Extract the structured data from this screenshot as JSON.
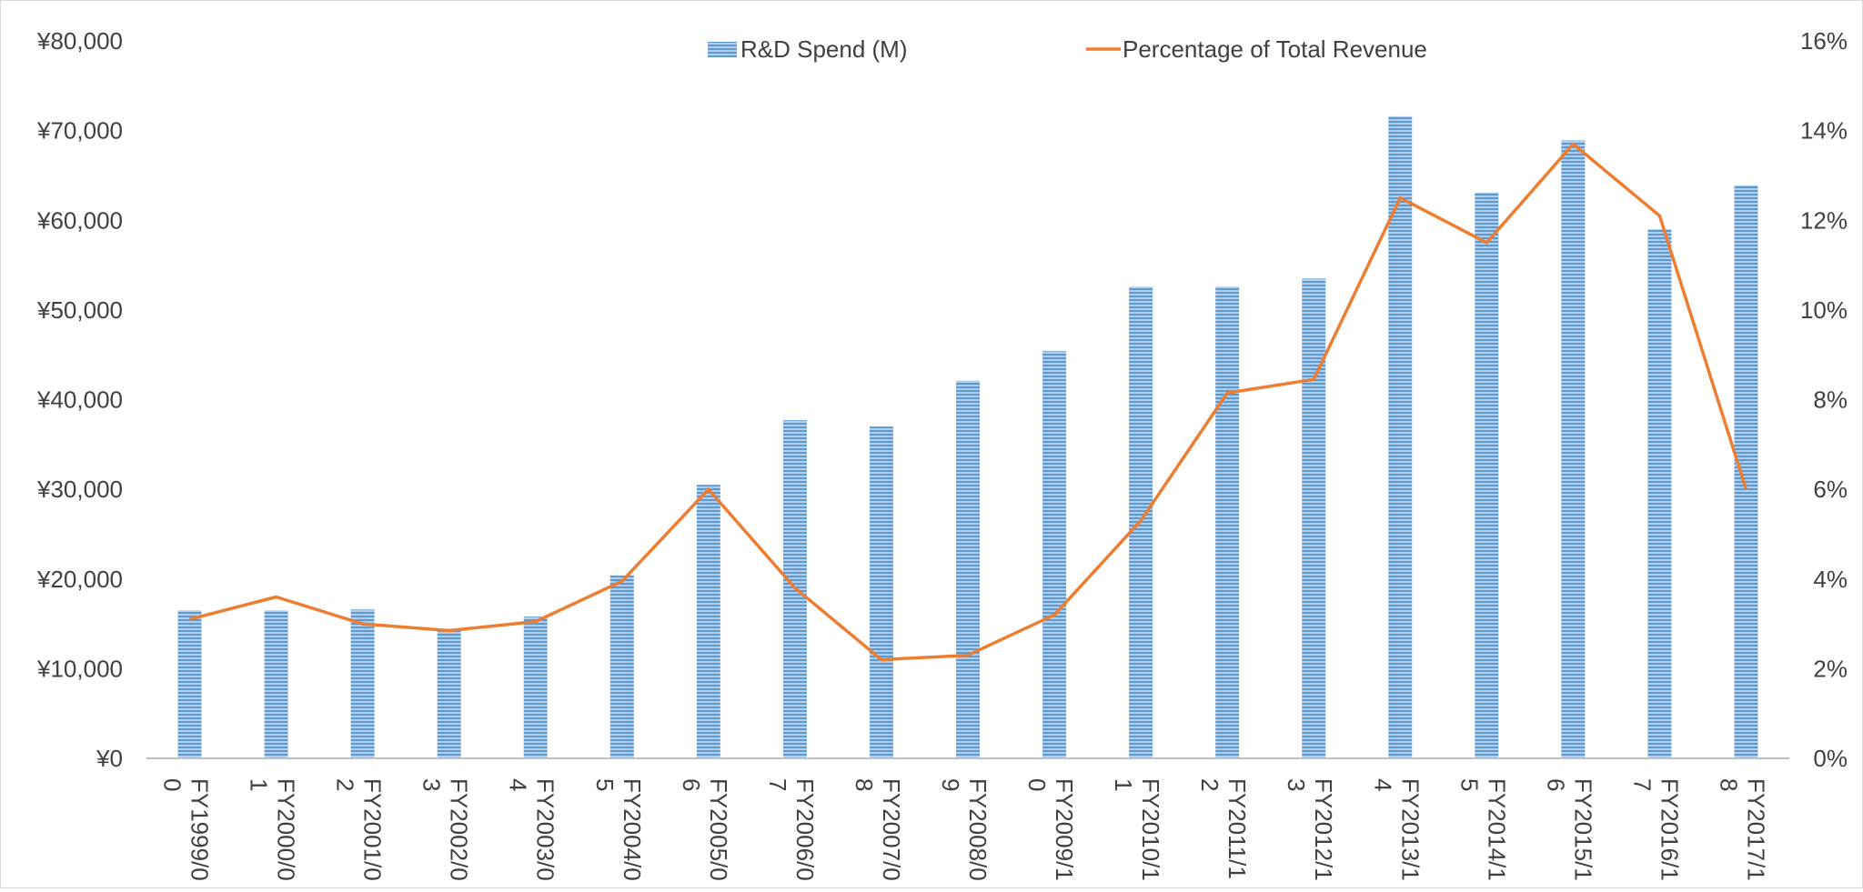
{
  "chart_data": {
    "type": "bar+line",
    "title": "",
    "xlabel": "",
    "ylabel": "",
    "categories": [
      [
        "FY1999/0",
        "0"
      ],
      [
        "FY2000/0",
        "1"
      ],
      [
        "FY2001/0",
        "2"
      ],
      [
        "FY2002/0",
        "3"
      ],
      [
        "FY2003/0",
        "4"
      ],
      [
        "FY2004/0",
        "5"
      ],
      [
        "FY2005/0",
        "6"
      ],
      [
        "FY2006/0",
        "7"
      ],
      [
        "FY2007/0",
        "8"
      ],
      [
        "FY2008/0",
        "9"
      ],
      [
        "FY2009/1",
        "0"
      ],
      [
        "FY2010/1",
        "1"
      ],
      [
        "FY2011/1",
        "2"
      ],
      [
        "FY2012/1",
        "3"
      ],
      [
        "FY2013/1",
        "4"
      ],
      [
        "FY2014/1",
        "5"
      ],
      [
        "FY2015/1",
        "6"
      ],
      [
        "FY2016/1",
        "7"
      ],
      [
        "FY2017/1",
        "8"
      ]
    ],
    "series": [
      {
        "name": "R&D Spend (M)",
        "kind": "bar",
        "axis": "left",
        "color": "#5b9bd5",
        "values": [
          16500,
          16500,
          16600,
          14300,
          15800,
          20400,
          30500,
          37700,
          37000,
          42100,
          45400,
          52600,
          52600,
          53500,
          71600,
          63100,
          68900,
          59000,
          63900
        ]
      },
      {
        "name": "Percentage of Total Revenue",
        "kind": "line",
        "axis": "right",
        "color": "#ed7d31",
        "values": [
          3.1,
          3.6,
          3.0,
          2.85,
          3.05,
          3.95,
          6.0,
          3.8,
          2.2,
          2.3,
          3.2,
          5.3,
          8.15,
          8.45,
          12.5,
          11.5,
          13.7,
          12.1,
          6.0
        ]
      }
    ],
    "y_left": {
      "range": [
        0,
        80000
      ],
      "ticks": [
        "¥0",
        "¥10,000",
        "¥20,000",
        "¥30,000",
        "¥40,000",
        "¥50,000",
        "¥60,000",
        "¥70,000",
        "¥80,000"
      ]
    },
    "y_right": {
      "range": [
        0,
        16
      ],
      "ticks": [
        "0%",
        "2%",
        "4%",
        "6%",
        "8%",
        "10%",
        "12%",
        "14%",
        "16%"
      ]
    },
    "legend": {
      "placement": "top-center"
    },
    "grid": false
  }
}
